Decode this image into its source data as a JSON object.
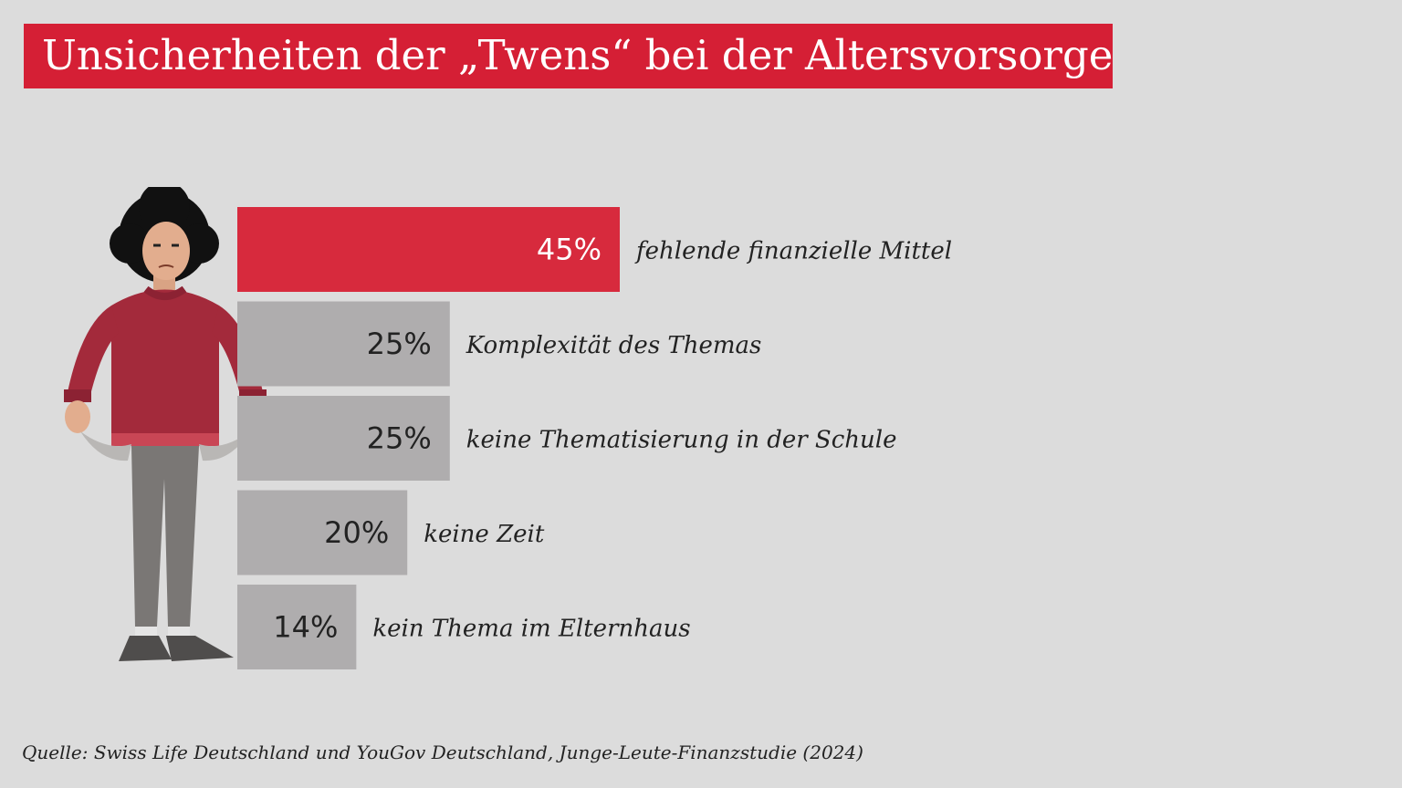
{
  "title": "Unsicherheiten der „Twens“ bei der Altersvorsorge",
  "source": "Quelle: Swiss Life Deutschland und YouGov Deutschland, Junge-Leute-Finanzstudie (2024)",
  "illustration_icon": "worried-person-empty-pockets-icon",
  "colors": {
    "background": "#dcdcdc",
    "accent": "#d51f35",
    "highlight_bar": "#d72a3d",
    "bar": "#afadae",
    "sweater": "#a32a3b",
    "pants": "#7a7775"
  },
  "chart_data": {
    "type": "bar",
    "orientation": "horizontal",
    "categories": [
      "fehlende finanzielle Mittel",
      "Komplexität des Themas",
      "keine Thematisierung in der Schule",
      "keine Zeit",
      "kein Thema im Elternhaus"
    ],
    "values": [
      45,
      25,
      25,
      20,
      14
    ],
    "value_labels": [
      "45%",
      "25%",
      "25%",
      "20%",
      "14%"
    ],
    "unit": "%",
    "highlight_index": 0,
    "grid": false,
    "legend": false
  }
}
